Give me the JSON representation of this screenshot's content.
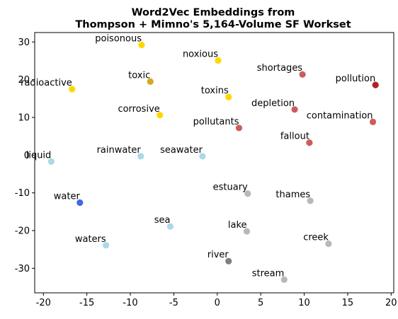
{
  "chart_data": {
    "type": "scatter",
    "title": [
      "Word2Vec Embeddings from",
      "Thompson + Mimno's 5,164-Volume SF Workset"
    ],
    "xlabel": "",
    "ylabel": "",
    "xlim": [
      -21,
      20.3
    ],
    "ylim": [
      -36.5,
      32.5
    ],
    "xticks": [
      -20,
      -15,
      -10,
      -5,
      0,
      5,
      10,
      15,
      20
    ],
    "yticks": [
      -30,
      -20,
      -10,
      0,
      10,
      20,
      30
    ],
    "grid": false,
    "legend": "none",
    "points": [
      {
        "label": "poisonous",
        "x": -8.7,
        "y": 29.2,
        "color": "#FFD700"
      },
      {
        "label": "noxious",
        "x": 0.1,
        "y": 25.1,
        "color": "#FFD700"
      },
      {
        "label": "shortages",
        "x": 9.8,
        "y": 21.4,
        "color": "#CD5C5C"
      },
      {
        "label": "pollution",
        "x": 18.2,
        "y": 18.6,
        "color": "#B22222"
      },
      {
        "label": "toxic",
        "x": -7.7,
        "y": 19.5,
        "color": "#DAA520"
      },
      {
        "label": "radioactive",
        "x": -16.7,
        "y": 17.5,
        "color": "#FFD700"
      },
      {
        "label": "toxins",
        "x": 1.3,
        "y": 15.4,
        "color": "#FFD700"
      },
      {
        "label": "depletion",
        "x": 8.9,
        "y": 12.1,
        "color": "#CD5C5C"
      },
      {
        "label": "corrosive",
        "x": -6.6,
        "y": 10.6,
        "color": "#FFD700"
      },
      {
        "label": "contamination",
        "x": 17.9,
        "y": 8.8,
        "color": "#CD5C5C"
      },
      {
        "label": "pollutants",
        "x": 2.5,
        "y": 7.2,
        "color": "#CD5C5C"
      },
      {
        "label": "fallout",
        "x": 10.6,
        "y": 3.3,
        "color": "#CD5C5C"
      },
      {
        "label": "rainwater",
        "x": -8.8,
        "y": -0.3,
        "color": "#ADD8E6"
      },
      {
        "label": "seawater",
        "x": -1.7,
        "y": -0.3,
        "color": "#ADD8E6"
      },
      {
        "label": "liquid",
        "x": -19.1,
        "y": -1.7,
        "color": "#ADD8E6"
      },
      {
        "label": "estuary",
        "x": 3.5,
        "y": -10.2,
        "color": "#B8B8B8"
      },
      {
        "label": "thames",
        "x": 10.7,
        "y": -12.1,
        "color": "#B8B8B8"
      },
      {
        "label": "water",
        "x": -15.8,
        "y": -12.6,
        "color": "#4169E1"
      },
      {
        "label": "sea",
        "x": -5.4,
        "y": -18.9,
        "color": "#ADD8E6"
      },
      {
        "label": "lake",
        "x": 3.4,
        "y": -20.2,
        "color": "#B8B8B8"
      },
      {
        "label": "waters",
        "x": -12.8,
        "y": -23.9,
        "color": "#ADD8E6"
      },
      {
        "label": "creek",
        "x": 12.8,
        "y": -23.5,
        "color": "#B8B8B8"
      },
      {
        "label": "river",
        "x": 1.3,
        "y": -28.1,
        "color": "#808080"
      },
      {
        "label": "stream",
        "x": 7.7,
        "y": -33.0,
        "color": "#B8B8B8"
      }
    ]
  }
}
